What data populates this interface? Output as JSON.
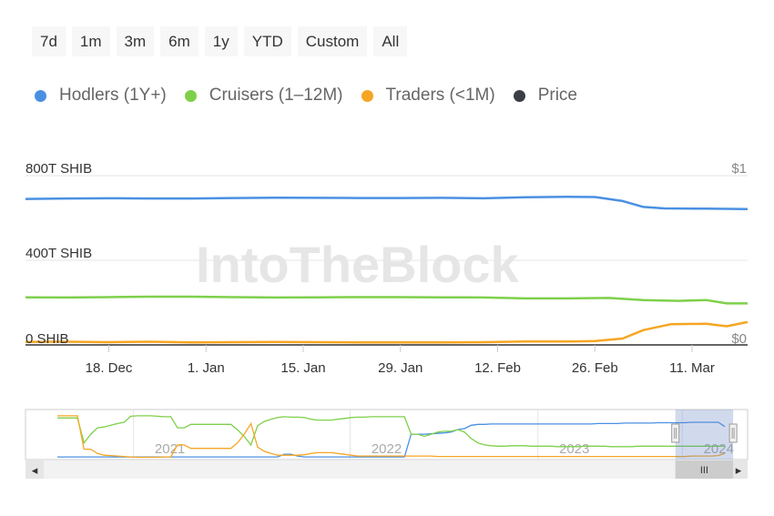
{
  "range_buttons": [
    "7d",
    "1m",
    "3m",
    "6m",
    "1y",
    "YTD",
    "Custom",
    "All"
  ],
  "watermark": "IntoTheBlock",
  "scrollbar": {
    "grip": "III",
    "left_arrow": "◂",
    "right_arrow": "▸"
  },
  "chart_data": {
    "type": "line",
    "legend": [
      {
        "name": "Hodlers (1Y+)",
        "color": "#4a90e2"
      },
      {
        "name": "Cruisers (1–12M)",
        "color": "#7ed04b"
      },
      {
        "name": "Traders (<1M)",
        "color": "#f5a623"
      },
      {
        "name": "Price",
        "color": "#3b3e45"
      }
    ],
    "legend_position": "top-left",
    "grid": true,
    "y_left": {
      "ticks": [
        "800T SHIB",
        "400T SHIB",
        "0 SHIB"
      ],
      "values": [
        800,
        400,
        0
      ],
      "range": [
        0,
        800
      ],
      "unit": "T SHIB"
    },
    "y_right": {
      "ticks": [
        "$1",
        "$0"
      ],
      "values": [
        1,
        0
      ]
    },
    "x_ticks": [
      "18. Dec",
      "1. Jan",
      "15. Jan",
      "29. Jan",
      "12. Feb",
      "26. Feb",
      "11. Mar"
    ],
    "x_tick_days": [
      18,
      32,
      46,
      60,
      74,
      88,
      102
    ],
    "x_range_days": [
      6,
      110
    ],
    "x_day_reference": "2023-12-01",
    "series": [
      {
        "name": "Hodlers (1Y+)",
        "color": "#4a90e2",
        "x": [
          6,
          12,
          18,
          24,
          30,
          36,
          42,
          48,
          54,
          60,
          66,
          72,
          78,
          84,
          88,
          92,
          95,
          98,
          104,
          110
        ],
        "y": [
          690,
          692,
          693,
          692,
          692,
          694,
          696,
          695,
          694,
          694,
          695,
          693,
          698,
          700,
          699,
          680,
          652,
          645,
          644,
          642
        ]
      },
      {
        "name": "Cruisers (1–12M)",
        "color": "#7ed04b",
        "x": [
          6,
          12,
          18,
          24,
          30,
          36,
          42,
          48,
          54,
          60,
          66,
          72,
          78,
          84,
          90,
          95,
          100,
          104,
          107,
          110
        ],
        "y": [
          225,
          224,
          226,
          228,
          228,
          226,
          224,
          225,
          226,
          226,
          225,
          224,
          220,
          220,
          222,
          212,
          208,
          212,
          196,
          196
        ]
      },
      {
        "name": "Traders (<1M)",
        "color": "#f5a623",
        "x": [
          6,
          12,
          18,
          24,
          30,
          36,
          42,
          48,
          54,
          60,
          66,
          72,
          78,
          84,
          88,
          92,
          95,
          99,
          104,
          107,
          110
        ],
        "y": [
          14,
          15,
          13,
          15,
          12,
          13,
          14,
          13,
          12,
          12,
          12,
          13,
          16,
          16,
          18,
          30,
          70,
          98,
          100,
          88,
          108
        ]
      }
    ],
    "navigator": {
      "years": [
        "2021",
        "2022",
        "2023",
        "2024"
      ],
      "year_fractions": [
        0.2,
        0.5,
        0.76,
        0.96
      ],
      "selected_fraction": [
        0.9,
        0.98
      ],
      "series": [
        {
          "name": "Hodlers (1Y+)",
          "color": "#4a90e2",
          "y": [
            0.02,
            0.02,
            0.02,
            0.02,
            0.02,
            0.02,
            0.02,
            0.02,
            0.02,
            0.02,
            0.02,
            0.02,
            0.02,
            0.02,
            0.02,
            0.02,
            0.02,
            0.02,
            0.02,
            0.02,
            0.02,
            0.02,
            0.02,
            0.02,
            0.02,
            0.02,
            0.02,
            0.02,
            0.02,
            0.02,
            0.02,
            0.02,
            0.02,
            0.02,
            0.08,
            0.08,
            0.04,
            0.02,
            0.02,
            0.02,
            0.02,
            0.02,
            0.02,
            0.02,
            0.02,
            0.02,
            0.02,
            0.02,
            0.02,
            0.02,
            0.02,
            0.02,
            0.02,
            0.55,
            0.55,
            0.55,
            0.56,
            0.57,
            0.58,
            0.6,
            0.66,
            0.68,
            0.76,
            0.78,
            0.78,
            0.79,
            0.79,
            0.79,
            0.79,
            0.79,
            0.79,
            0.79,
            0.79,
            0.79,
            0.79,
            0.79,
            0.79,
            0.79,
            0.79,
            0.79,
            0.79,
            0.8,
            0.8,
            0.8,
            0.8,
            0.81,
            0.81,
            0.81,
            0.81,
            0.81,
            0.82,
            0.82,
            0.82,
            0.82,
            0.82,
            0.83,
            0.83,
            0.83,
            0.83,
            0.83,
            0.73
          ]
        },
        {
          "name": "Cruisers (1–12M)",
          "color": "#7ed04b",
          "y": [
            0.93,
            0.93,
            0.93,
            0.93,
            0.35,
            0.55,
            0.7,
            0.72,
            0.76,
            0.8,
            0.83,
            0.97,
            0.98,
            0.98,
            0.98,
            0.97,
            0.96,
            0.96,
            0.7,
            0.7,
            0.78,
            0.78,
            0.78,
            0.78,
            0.78,
            0.78,
            0.78,
            0.65,
            0.5,
            0.3,
            0.75,
            0.85,
            0.9,
            0.94,
            0.96,
            0.95,
            0.95,
            0.94,
            0.9,
            0.88,
            0.88,
            0.88,
            0.9,
            0.92,
            0.94,
            0.95,
            0.95,
            0.96,
            0.96,
            0.96,
            0.96,
            0.96,
            0.96,
            0.55,
            0.55,
            0.5,
            0.55,
            0.6,
            0.62,
            0.62,
            0.66,
            0.6,
            0.45,
            0.35,
            0.3,
            0.28,
            0.27,
            0.27,
            0.28,
            0.28,
            0.28,
            0.27,
            0.27,
            0.27,
            0.27,
            0.26,
            0.26,
            0.26,
            0.26,
            0.27,
            0.27,
            0.27,
            0.27,
            0.26,
            0.26,
            0.26,
            0.26,
            0.27,
            0.27,
            0.27,
            0.27,
            0.27,
            0.27,
            0.27,
            0.27,
            0.27,
            0.27,
            0.27,
            0.27,
            0.27,
            0.27
          ]
        },
        {
          "name": "Traders (<1M)",
          "color": "#f5a623",
          "y": [
            0.98,
            0.98,
            0.98,
            0.98,
            0.2,
            0.2,
            0.1,
            0.06,
            0.05,
            0.04,
            0.03,
            0.02,
            0.01,
            0.01,
            0.01,
            0.01,
            0.02,
            0.02,
            0.3,
            0.3,
            0.22,
            0.22,
            0.22,
            0.22,
            0.22,
            0.22,
            0.22,
            0.35,
            0.55,
            0.8,
            0.25,
            0.15,
            0.1,
            0.06,
            0.06,
            0.06,
            0.06,
            0.07,
            0.1,
            0.12,
            0.12,
            0.12,
            0.1,
            0.08,
            0.06,
            0.04,
            0.04,
            0.04,
            0.04,
            0.04,
            0.04,
            0.04,
            0.04,
            0.04,
            0.04,
            0.04,
            0.04,
            0.03,
            0.03,
            0.03,
            0.03,
            0.03,
            0.03,
            0.03,
            0.03,
            0.03,
            0.03,
            0.03,
            0.03,
            0.03,
            0.03,
            0.03,
            0.03,
            0.03,
            0.03,
            0.03,
            0.03,
            0.03,
            0.03,
            0.03,
            0.03,
            0.03,
            0.03,
            0.03,
            0.03,
            0.03,
            0.03,
            0.03,
            0.03,
            0.03,
            0.03,
            0.03,
            0.03,
            0.03,
            0.03,
            0.04,
            0.04,
            0.04,
            0.04,
            0.05,
            0.1
          ]
        }
      ]
    }
  }
}
